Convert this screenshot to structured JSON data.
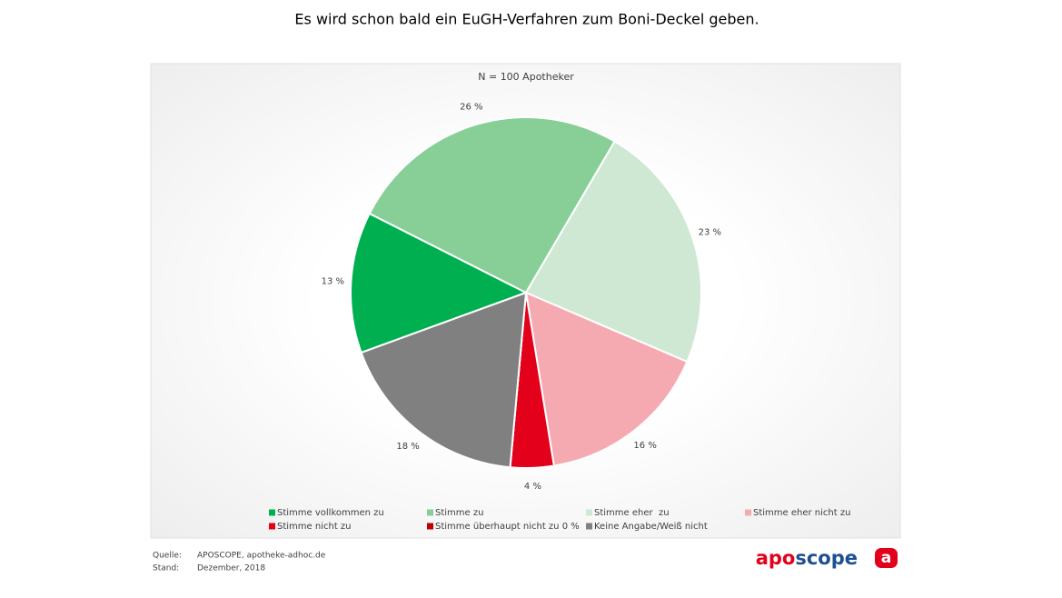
{
  "chart_data": {
    "type": "pie",
    "title": "Es wird schon bald ein EuGH-Verfahren zum Boni-Deckel geben.",
    "subtitle": "N = 100 Apotheker",
    "categories": [
      "Stimme vollkommen zu",
      "Stimme zu",
      "Stimme eher  zu",
      "Stimme eher nicht zu",
      "Stimme nicht zu",
      "Stimme überhaupt nicht zu 0 %",
      "Keine Angabe/Weiß nicht"
    ],
    "values": [
      13,
      26,
      23,
      16,
      4,
      0,
      18
    ],
    "value_labels": [
      "13 %",
      "26 %",
      "23 %",
      "16 %",
      "4 %",
      null,
      "18 %"
    ],
    "colors": [
      "#00b050",
      "#88cf97",
      "#cfe8d3",
      "#f5aab2",
      "#e2001a",
      "#c00000",
      "#808080"
    ],
    "legend": "bottom"
  },
  "footer": {
    "source_label": "Quelle:",
    "source": "APOSCOPE, apotheke-adhoc.de",
    "date_label": "Stand:",
    "date": "Dezember, 2018",
    "logo": [
      "apo",
      "scope"
    ],
    "icon": "a"
  }
}
